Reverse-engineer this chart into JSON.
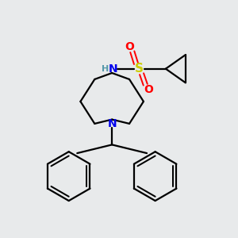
{
  "bg_color": "#e8eaeb",
  "bond_color": "#000000",
  "N_color": "#0000ee",
  "S_color": "#cccc00",
  "O_color": "#ff0000",
  "H_color": "#5599aa",
  "line_width": 1.6,
  "fig_size": [
    3.0,
    3.0
  ],
  "dpi": 100,
  "xlim": [
    0,
    10
  ],
  "ylim": [
    0,
    10
  ]
}
